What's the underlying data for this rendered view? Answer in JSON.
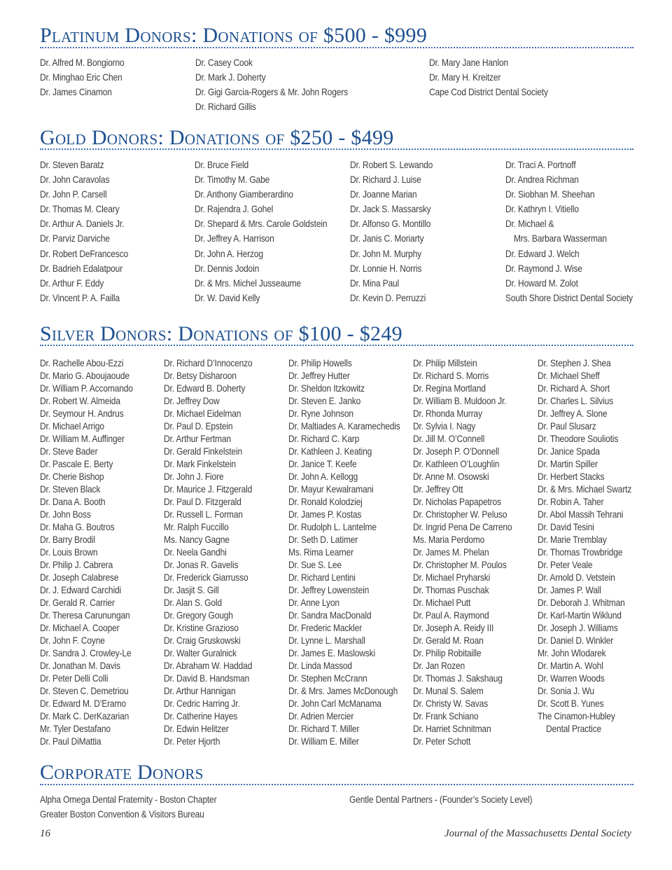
{
  "sections": {
    "platinum": {
      "title": "Platinum Donors: Donations of $500 - $999",
      "columns": [
        [
          "Dr. Alfred M. Bongiorno",
          "Dr. Minghao Eric Chen",
          "Dr. James Cinamon"
        ],
        [
          "Dr. Casey Cook",
          "Dr. Mark J. Doherty",
          "Dr. Gigi Garcia-Rogers & Mr. John Rogers",
          "Dr. Richard Gillis"
        ],
        [
          "Dr. Mary Jane Hanlon",
          "Dr. Mary H. Kreitzer",
          "Cape Cod District Dental Society"
        ]
      ]
    },
    "gold": {
      "title": "Gold Donors: Donations of $250 - $499",
      "columns": [
        [
          "Dr. Steven Baratz",
          "Dr. John Caravolas",
          "Dr. John P. Carsell",
          "Dr. Thomas M. Cleary",
          "Dr. Arthur A. Daniels Jr.",
          "Dr. Parviz Darviche",
          "Dr. Robert DeFrancesco",
          "Dr. Badrieh Edalatpour",
          "Dr. Arthur F. Eddy",
          "Dr. Vincent P. A. Failla"
        ],
        [
          "Dr. Bruce Field",
          "Dr. Timothy M. Gabe",
          "Dr. Anthony Giamberardino",
          "Dr. Rajendra J. Gohel",
          "Dr. Shepard & Mrs. Carole Goldstein",
          "Dr. Jeffrey A. Harrison",
          "Dr. John A. Herzog",
          "Dr. Dennis Jodoin",
          "Dr. & Mrs. Michel Jusseaume",
          "Dr. W. David Kelly"
        ],
        [
          "Dr. Robert S. Lewando",
          "Dr. Richard J. Luise",
          "Dr. Joanne Marian",
          "Dr. Jack S. Massarsky",
          "Dr. Alfonso G. Montillo",
          "Dr. Janis C. Moriarty",
          "Dr. John M. Murphy",
          "Dr. Lonnie H. Norris",
          "Dr. Mina Paul",
          "Dr. Kevin D. Perruzzi"
        ],
        [
          "Dr. Traci A. Portnoff",
          "Dr. Andrea Richman",
          "Dr. Siobhan M. Sheehan",
          "Dr. Kathryn I. Vitiello",
          {
            "name": "Dr. Michael &",
            "continued": "Mrs. Barbara Wasserman"
          },
          "Dr. Edward J. Welch",
          "Dr. Raymond J. Wise",
          "Dr. Howard M. Zolot",
          "South Shore District Dental Society"
        ]
      ]
    },
    "silver": {
      "title": "Silver Donors: Donations of $100 - $249",
      "columns": [
        [
          "Dr. Rachelle Abou-Ezzi",
          "Dr. Mario G. Aboujaoude",
          "Dr. William P. Accomando",
          "Dr. Robert W. Almeida",
          "Dr. Seymour H. Andrus",
          "Dr. Michael Arrigo",
          "Dr. William M. Auffinger",
          "Dr. Steve Bader",
          "Dr. Pascale E. Berty",
          "Dr. Cherie Bishop",
          "Dr. Steven Black",
          "Dr. Dana A. Booth",
          "Dr. John Boss",
          "Dr. Maha G. Boutros",
          "Dr. Barry Brodil",
          "Dr. Louis Brown",
          "Dr. Philip J. Cabrera",
          "Dr. Joseph Calabrese",
          "Dr. J. Edward Carchidi",
          "Dr. Gerald R. Carrier",
          "Dr. Theresa Carunungan",
          "Dr. Michael A. Cooper",
          "Dr. John F. Coyne",
          "Dr. Sandra J. Crowley-Le",
          "Dr. Jonathan M. Davis",
          "Dr. Peter Delli Colli",
          "Dr. Steven C. Demetriou",
          "Dr. Edward M. D’Eramo",
          "Dr. Mark C. DerKazarian",
          "Mr. Tyler Destafano",
          "Dr. Paul DiMattia"
        ],
        [
          "Dr. Richard D’Innocenzo",
          "Dr. Betsy Disharoon",
          "Dr. Edward B. Doherty",
          "Dr. Jeffrey Dow",
          "Dr. Michael Eidelman",
          "Dr. Paul D. Epstein",
          "Dr. Arthur Fertman",
          "Dr. Gerald Finkelstein",
          "Dr. Mark Finkelstein",
          "Dr. John J. Fiore",
          "Dr. Maurice J. Fitzgerald",
          "Dr. Paul D. Fitzgerald",
          "Dr. Russell L. Forman",
          "Mr. Ralph Fuccillo",
          "Ms. Nancy Gagne",
          "Dr. Neela Gandhi",
          "Dr. Jonas R. Gavelis",
          "Dr. Frederick Giarrusso",
          "Dr. Jasjit S. Gill",
          "Dr. Alan S. Gold",
          "Dr. Gregory Gough",
          "Dr. Kristine Grazioso",
          "Dr. Craig Gruskowski",
          "Dr. Walter Guralnick",
          "Dr. Abraham W. Haddad",
          "Dr. David B. Handsman",
          "Dr. Arthur Hannigan",
          "Dr. Cedric Harring Jr.",
          "Dr. Catherine Hayes",
          "Dr. Edwin Helitzer",
          "Dr. Peter Hjorth"
        ],
        [
          "Dr. Philip Howells",
          "Dr. Jeffrey Hutter",
          "Dr. Sheldon Itzkowitz",
          "Dr. Steven E. Janko",
          "Dr. Ryne Johnson",
          "Dr. Maltiades A. Karamechedis",
          "Dr. Richard C. Karp",
          "Dr. Kathleen J. Keating",
          "Dr. Janice T. Keefe",
          "Dr. John A. Kellogg",
          "Dr. Mayur Kewalramani",
          "Dr. Ronald Kolodziej",
          "Dr. James P. Kostas",
          "Dr. Rudolph L. Lantelme",
          "Dr. Seth D. Latimer",
          "Ms. Rima Learner",
          "Dr. Sue S. Lee",
          "Dr. Richard Lentini",
          "Dr. Jeffrey Lowenstein",
          "Dr. Anne Lyon",
          "Dr. Sandra MacDonald",
          "Dr. Frederic Mackler",
          "Dr. Lynne L. Marshall",
          "Dr. James E. Maslowski",
          "Dr. Linda Massod",
          "Dr. Stephen McCrann",
          "Dr. & Mrs. James McDonough",
          "Dr. John Carl McManama",
          "Dr. Adrien Mercier",
          "Dr. Richard T. Miller",
          "Dr. William E. Miller"
        ],
        [
          "Dr. Philip Millstein",
          "Dr. Richard S. Morris",
          "Dr. Regina Mortland",
          "Dr. William B. Muldoon Jr.",
          "Dr. Rhonda Murray",
          "Dr. Sylvia I. Nagy",
          "Dr. Jill M. O’Connell",
          "Dr. Joseph P. O’Donnell",
          "Dr. Kathleen O’Loughlin",
          "Dr. Anne M. Osowski",
          "Dr. Jeffrey Ott",
          "Dr. Nicholas Papapetros",
          "Dr. Christopher W. Peluso",
          "Dr. Ingrid Pena De Carreno",
          "Ms. Maria Perdomo",
          "Dr. James M. Phelan",
          "Dr. Christopher M. Poulos",
          "Dr. Michael Pryharski",
          "Dr. Thomas Puschak",
          "Dr. Michael Putt",
          "Dr. Paul A. Raymond",
          "Dr. Joseph A. Reidy III",
          "Dr. Gerald M. Roan",
          "Dr. Philip Robitaille",
          "Dr. Jan Rozen",
          "Dr. Thomas J. Sakshaug",
          "Dr. Munal S. Salem",
          "Dr. Christy W. Savas",
          "Dr. Frank Schiano",
          "Dr. Harriet Schnitman",
          "Dr. Peter Schott"
        ],
        [
          "Dr. Stephen J. Shea",
          "Dr. Michael Sheff",
          "Dr. Richard A. Short",
          "Dr. Charles L. Silvius",
          "Dr. Jeffrey A. Slone",
          "Dr. Paul Slusarz",
          "Dr. Theodore Souliotis",
          "Dr. Janice Spada",
          "Dr. Martin Spiller",
          "Dr. Herbert Stacks",
          "Dr. & Mrs. Michael Swartz",
          "Dr. Robin A. Taher",
          "Dr. Abol Massih Tehrani",
          "Dr. David Tesini",
          "Dr. Marie Tremblay",
          "Dr. Thomas Trowbridge",
          "Dr. Peter Veale",
          "Dr. Arnold D. Vetstein",
          "Dr. James P. Wall",
          "Dr. Deborah J. Whitman",
          "Dr. Karl-Martin Wiklund",
          "Dr. Joseph J. Williams",
          "Dr. Daniel D. Winkler",
          "Mr. John Wlodarek",
          "Dr. Martin A. Wohl",
          "Dr. Warren Woods",
          "Dr. Sonia J. Wu",
          "Dr. Scott B. Yunes",
          {
            "name": "The Cinamon-Hubley",
            "continued": "Dental Practice"
          }
        ]
      ]
    },
    "corporate": {
      "title": "Corporate Donors",
      "columns": [
        [
          "Alpha Omega Dental Fraternity - Boston Chapter",
          "Greater Boston Convention & Visitors Bureau"
        ],
        [
          "Gentle Dental Partners - (Founder’s Society Level)"
        ]
      ]
    }
  },
  "footer": {
    "page_number": "16",
    "journal": "Journal of the Massachusetts Dental Society"
  },
  "colors": {
    "heading": "#1d4f8f",
    "rule": "#3c6bb0",
    "text": "#3d3d3d"
  }
}
